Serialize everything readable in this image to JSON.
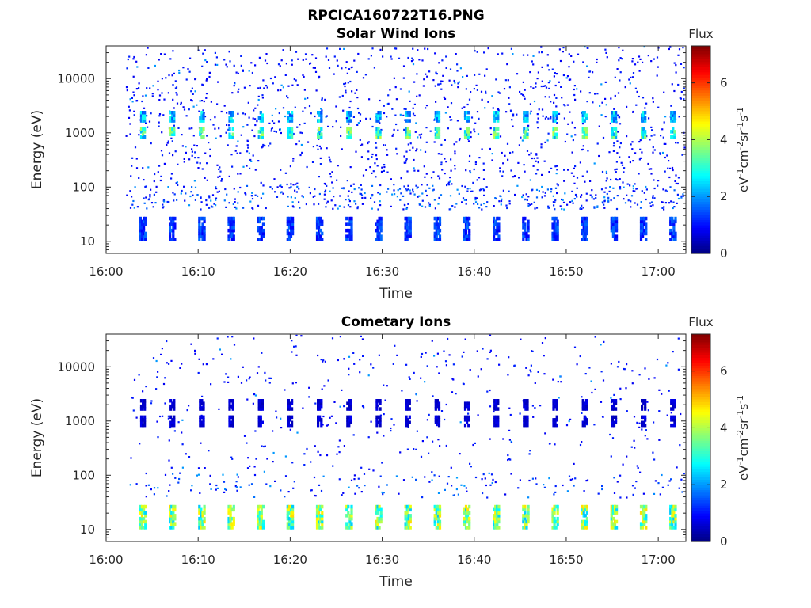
{
  "figure": {
    "title": "RPCICA160722T16.PNG"
  },
  "chart_data": [
    {
      "type": "heatmap",
      "title": "Solar Wind Ions",
      "xlabel": "Time",
      "ylabel": "Energy (eV)",
      "x_ticks": [
        "16:00",
        "16:10",
        "16:20",
        "16:30",
        "16:40",
        "16:50",
        "17:00"
      ],
      "x_range": [
        "16:00",
        "17:03"
      ],
      "y_scale": "log",
      "y_ticks": [
        10,
        100,
        1000,
        10000
      ],
      "y_tick_labels": [
        "10",
        "100",
        "1000",
        "10000"
      ],
      "y_range": [
        6,
        40000
      ],
      "colorbar": {
        "title": "Flux",
        "label": "eV-1cm-2sr-1s-1",
        "ticks": [
          0,
          2,
          4,
          6
        ],
        "range": [
          0,
          7.3
        ],
        "colormap": "jet"
      },
      "scan_period_minutes": 3.2,
      "first_scan": "16:04",
      "bursts": [
        {
          "energy_center": 1000,
          "flux": 3.6,
          "description": "periodic solar wind peak near 1000 eV each scan"
        },
        {
          "energy_center": 2000,
          "flux": 2.6
        },
        {
          "energy_center": 17,
          "flux": 1.5,
          "description": "low energy background near 10-25 eV"
        }
      ],
      "background": {
        "energy_range": [
          40,
          40000
        ],
        "flux": 0.8,
        "description": "scattered noise points"
      }
    },
    {
      "type": "heatmap",
      "title": "Cometary Ions",
      "xlabel": "Time",
      "ylabel": "Energy (eV)",
      "x_ticks": [
        "16:00",
        "16:10",
        "16:20",
        "16:30",
        "16:40",
        "16:50",
        "17:00"
      ],
      "x_range": [
        "16:00",
        "17:03"
      ],
      "y_scale": "log",
      "y_ticks": [
        10,
        100,
        1000,
        10000
      ],
      "y_tick_labels": [
        "10",
        "100",
        "1000",
        "10000"
      ],
      "y_range": [
        6,
        40000
      ],
      "colorbar": {
        "title": "Flux",
        "label": "eV-1cm-2sr-1s-1",
        "ticks": [
          0,
          2,
          4,
          6
        ],
        "range": [
          0,
          7.3
        ],
        "colormap": "jet"
      },
      "scan_period_minutes": 3.2,
      "first_scan": "16:04",
      "bursts": [
        {
          "energy_center": 17,
          "flux": 4.2,
          "description": "periodic cometary ions near 10-25 eV each scan"
        },
        {
          "energy_center": 1000,
          "flux": 0.7
        },
        {
          "energy_center": 2000,
          "flux": 0.7
        }
      ],
      "background": {
        "energy_range": [
          40,
          40000
        ],
        "flux": 0.8,
        "description": "sparse scattered points"
      }
    }
  ]
}
